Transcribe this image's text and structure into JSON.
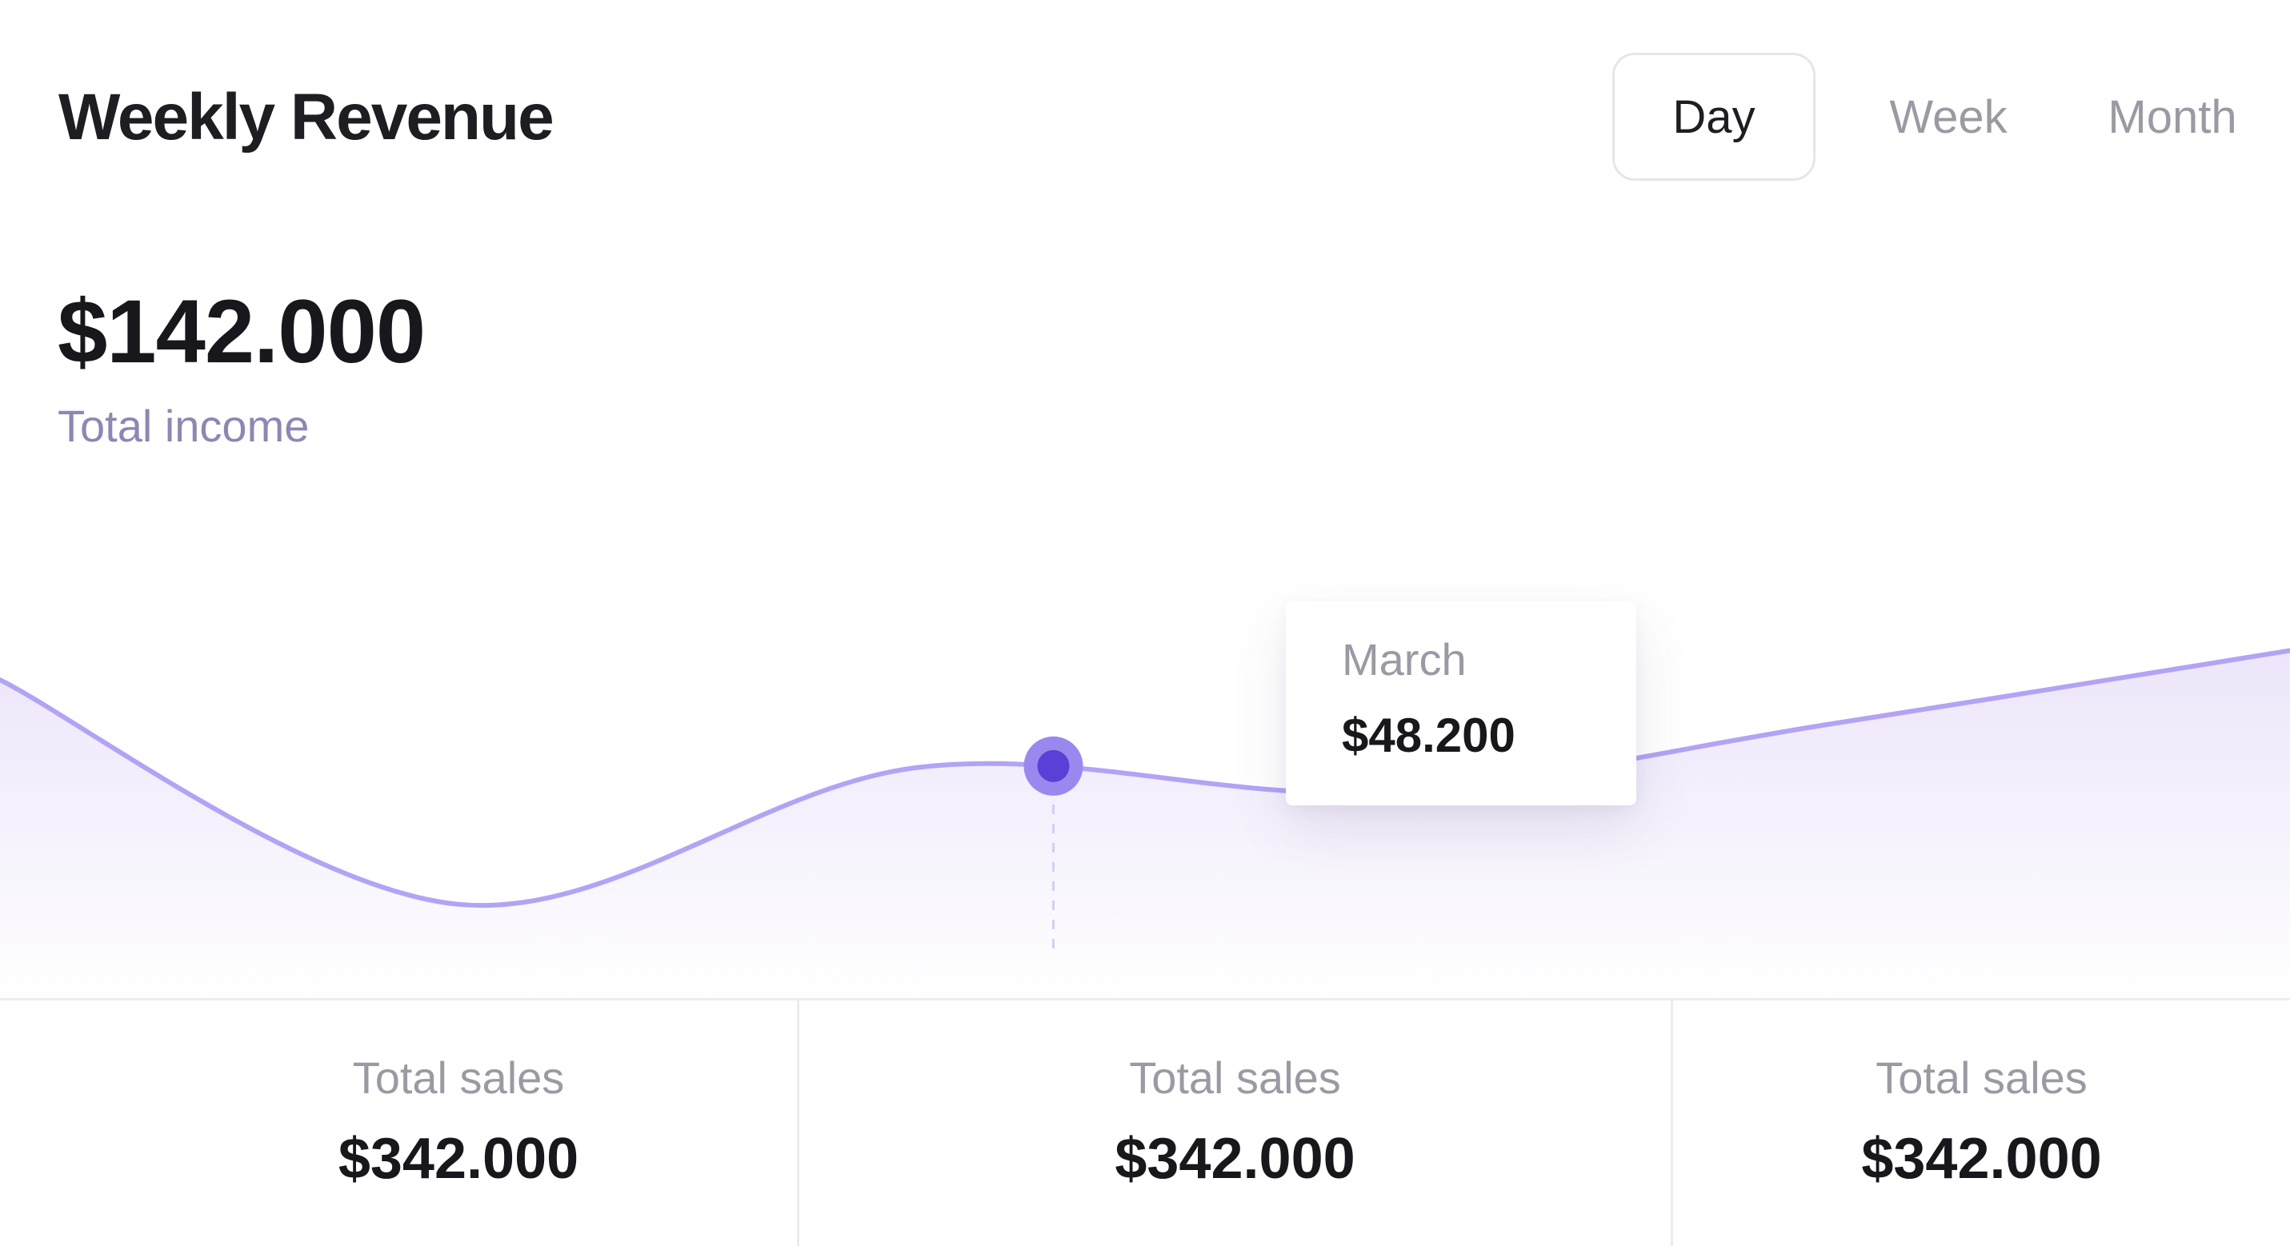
{
  "header": {
    "title": "Weekly Revenue",
    "periods": [
      {
        "label": "Day",
        "selected": true
      },
      {
        "label": "Week",
        "selected": false
      },
      {
        "label": "Month",
        "selected": false
      }
    ]
  },
  "summary": {
    "total_value": "$142.000",
    "total_label": "Total income"
  },
  "chart_data": {
    "type": "area",
    "y": [
      59,
      13,
      41,
      36,
      50,
      65
    ],
    "ylim": [
      0,
      100
    ],
    "line_color": "#b3a3f5",
    "fill_color": "#efe9fb",
    "highlight": {
      "index": 2.3,
      "label": "March",
      "value": "$48.200",
      "point_color": "#5b3fd6"
    }
  },
  "stats": [
    {
      "label": "Total sales",
      "value": "$342.000"
    },
    {
      "label": "Total sales",
      "value": "$342.000"
    },
    {
      "label": "Total sales",
      "value": "$342.000"
    }
  ]
}
